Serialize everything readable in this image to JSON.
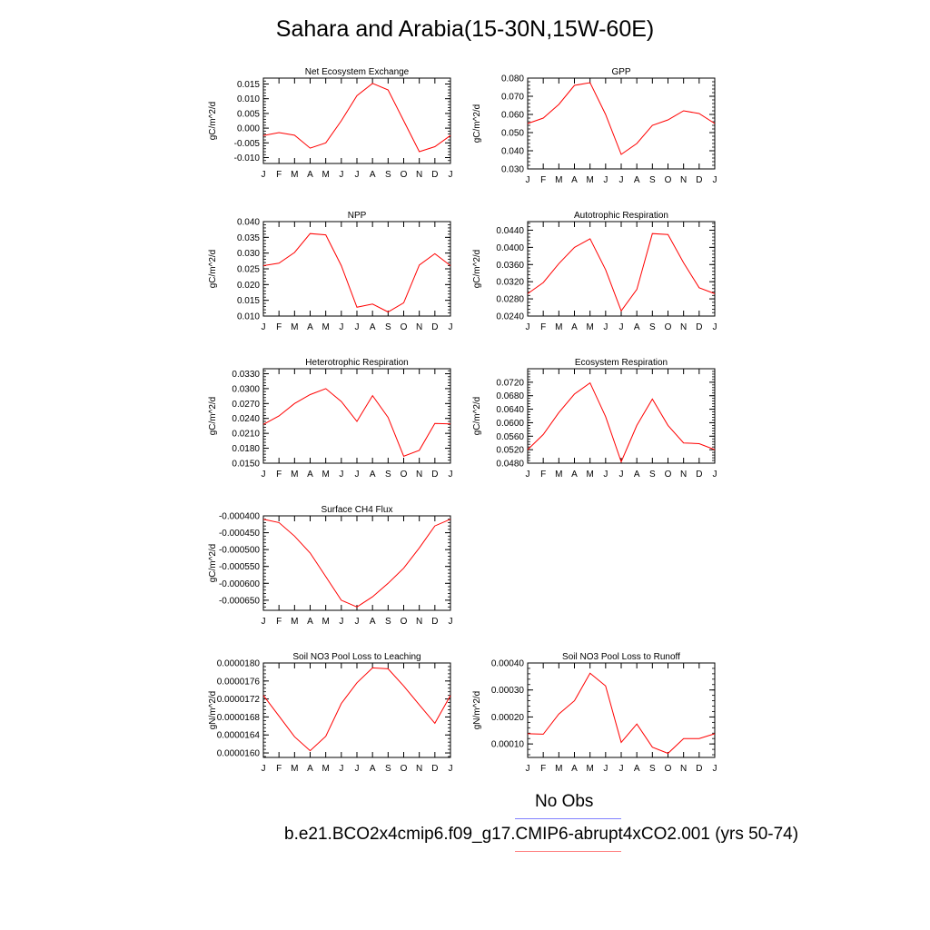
{
  "figure": {
    "title": "Sahara and Arabia(15-30N,15W-60E)",
    "legend": [
      {
        "label": "No Obs",
        "color": "#8080ff"
      },
      {
        "label": "b.e21.BCO2x4cmip6.f09_g17.CMIP6-abrupt4xCO2.001 (yrs 50-74)",
        "color": "#ff8080"
      }
    ]
  },
  "chart_data": [
    {
      "type": "line",
      "title": "Net Ecosystem Exchange",
      "ylabel": "gC/m^2/d",
      "xlabel": "",
      "categories": [
        "J",
        "F",
        "M",
        "A",
        "M",
        "J",
        "J",
        "A",
        "S",
        "O",
        "N",
        "D",
        "J"
      ],
      "ylim": [
        -0.012,
        0.017
      ],
      "yticks": [
        "-0.010",
        "-0.005",
        "0.000",
        "0.005",
        "0.010",
        "0.015"
      ],
      "series": [
        {
          "color": "#ff0000",
          "values": [
            -0.0025,
            -0.0015,
            -0.0024,
            -0.0068,
            -0.005,
            0.0025,
            0.011,
            0.0152,
            0.013,
            0.0025,
            -0.008,
            -0.0063,
            -0.0025
          ]
        }
      ]
    },
    {
      "type": "line",
      "title": "GPP",
      "ylabel": "gC/m^2/d",
      "xlabel": "",
      "categories": [
        "J",
        "F",
        "M",
        "A",
        "M",
        "J",
        "J",
        "A",
        "S",
        "O",
        "N",
        "D",
        "J"
      ],
      "ylim": [
        0.03,
        0.08
      ],
      "yticks": [
        "0.030",
        "0.040",
        "0.050",
        "0.060",
        "0.070",
        "0.080"
      ],
      "series": [
        {
          "color": "#ff0000",
          "values": [
            0.055,
            0.058,
            0.0655,
            0.076,
            0.0775,
            0.06,
            0.038,
            0.044,
            0.054,
            0.057,
            0.062,
            0.0605,
            0.055
          ]
        }
      ]
    },
    {
      "type": "line",
      "title": "NPP",
      "ylabel": "gC/m^2/d",
      "xlabel": "",
      "categories": [
        "J",
        "F",
        "M",
        "A",
        "M",
        "J",
        "J",
        "A",
        "S",
        "O",
        "N",
        "D",
        "J"
      ],
      "ylim": [
        0.01,
        0.04
      ],
      "yticks": [
        "0.010",
        "0.015",
        "0.020",
        "0.025",
        "0.030",
        "0.035",
        "0.040"
      ],
      "series": [
        {
          "color": "#ff0000",
          "values": [
            0.026,
            0.0268,
            0.0302,
            0.0362,
            0.0358,
            0.026,
            0.0128,
            0.0138,
            0.0113,
            0.0142,
            0.0262,
            0.0298,
            0.026
          ]
        }
      ]
    },
    {
      "type": "line",
      "title": "Autotrophic Respiration",
      "ylabel": "gC/m^2/d",
      "xlabel": "",
      "categories": [
        "J",
        "F",
        "M",
        "A",
        "M",
        "J",
        "J",
        "A",
        "S",
        "O",
        "N",
        "D",
        "J"
      ],
      "ylim": [
        0.024,
        0.046
      ],
      "yticks": [
        "0.0240",
        "0.0280",
        "0.0320",
        "0.0360",
        "0.0400",
        "0.0440"
      ],
      "series": [
        {
          "color": "#ff0000",
          "values": [
            0.0292,
            0.0318,
            0.0362,
            0.04,
            0.042,
            0.0348,
            0.0252,
            0.0302,
            0.0432,
            0.043,
            0.0364,
            0.0306,
            0.0292
          ]
        }
      ]
    },
    {
      "type": "line",
      "title": "Heterotrophic Respiration",
      "ylabel": "gC/m^2/d",
      "xlabel": "",
      "categories": [
        "J",
        "F",
        "M",
        "A",
        "M",
        "J",
        "J",
        "A",
        "S",
        "O",
        "N",
        "D",
        "J"
      ],
      "ylim": [
        0.015,
        0.034
      ],
      "yticks": [
        "0.0150",
        "0.0180",
        "0.0210",
        "0.0240",
        "0.0270",
        "0.0300",
        "0.0330"
      ],
      "series": [
        {
          "color": "#ff0000",
          "values": [
            0.0228,
            0.0245,
            0.027,
            0.0288,
            0.03,
            0.0274,
            0.0234,
            0.0286,
            0.0242,
            0.0164,
            0.0176,
            0.023,
            0.0229
          ]
        }
      ]
    },
    {
      "type": "line",
      "title": "Ecosystem Respiration",
      "ylabel": "gC/m^2/d",
      "xlabel": "",
      "categories": [
        "J",
        "F",
        "M",
        "A",
        "M",
        "J",
        "J",
        "A",
        "S",
        "O",
        "N",
        "D",
        "J"
      ],
      "ylim": [
        0.048,
        0.076
      ],
      "yticks": [
        "0.0480",
        "0.0520",
        "0.0560",
        "0.0600",
        "0.0640",
        "0.0680",
        "0.0720"
      ],
      "series": [
        {
          "color": "#ff0000",
          "values": [
            0.052,
            0.0565,
            0.063,
            0.0685,
            0.0718,
            0.0618,
            0.0484,
            0.0592,
            0.067,
            0.0592,
            0.054,
            0.0538,
            0.052
          ]
        }
      ]
    },
    {
      "type": "line",
      "title": "Surface CH4 Flux",
      "ylabel": "gC/m^2/d",
      "xlabel": "",
      "categories": [
        "J",
        "F",
        "M",
        "A",
        "M",
        "J",
        "J",
        "A",
        "S",
        "O",
        "N",
        "D",
        "J"
      ],
      "ylim": [
        -0.00068,
        -0.0004
      ],
      "yticks": [
        "-0.000650",
        "-0.000600",
        "-0.000550",
        "-0.000500",
        "-0.000450",
        "-0.000400"
      ],
      "series": [
        {
          "color": "#ff0000",
          "values": [
            -0.00041,
            -0.00042,
            -0.00046,
            -0.00051,
            -0.00058,
            -0.00065,
            -0.00067,
            -0.00064,
            -0.0006,
            -0.000555,
            -0.000495,
            -0.00043,
            -0.00041
          ]
        }
      ]
    },
    {
      "type": "line",
      "title": "Soil NO3 Pool Loss to Leaching",
      "ylabel": "gN/m^2/d",
      "xlabel": "",
      "categories": [
        "J",
        "F",
        "M",
        "A",
        "M",
        "J",
        "J",
        "A",
        "S",
        "O",
        "N",
        "D",
        "J"
      ],
      "ylim": [
        1.59e-05,
        1.8e-05
      ],
      "yticks": [
        "0.0000160",
        "0.0000164",
        "0.0000168",
        "0.0000172",
        "0.0000176",
        "0.0000180"
      ],
      "series": [
        {
          "color": "#ff0000",
          "values": [
            1.728e-05,
            1.682e-05,
            1.636e-05,
            1.605e-05,
            1.637e-05,
            1.71e-05,
            1.756e-05,
            1.789e-05,
            1.787e-05,
            1.749e-05,
            1.707e-05,
            1.666e-05,
            1.728e-05
          ]
        }
      ]
    },
    {
      "type": "line",
      "title": "Soil NO3 Pool Loss to Runoff",
      "ylabel": "gN/m^2/d",
      "xlabel": "",
      "categories": [
        "J",
        "F",
        "M",
        "A",
        "M",
        "J",
        "J",
        "A",
        "S",
        "O",
        "N",
        "D",
        "J"
      ],
      "ylim": [
        5e-05,
        0.0004
      ],
      "yticks": [
        "0.00010",
        "0.00020",
        "0.00030",
        "0.00040"
      ],
      "series": [
        {
          "color": "#ff0000",
          "values": [
            0.000138,
            0.000136,
            0.000211,
            0.00026,
            0.000362,
            0.000315,
            0.000106,
            0.000174,
            8.8e-05,
            6.5e-05,
            0.00012,
            0.00012,
            0.000138
          ]
        }
      ]
    }
  ]
}
